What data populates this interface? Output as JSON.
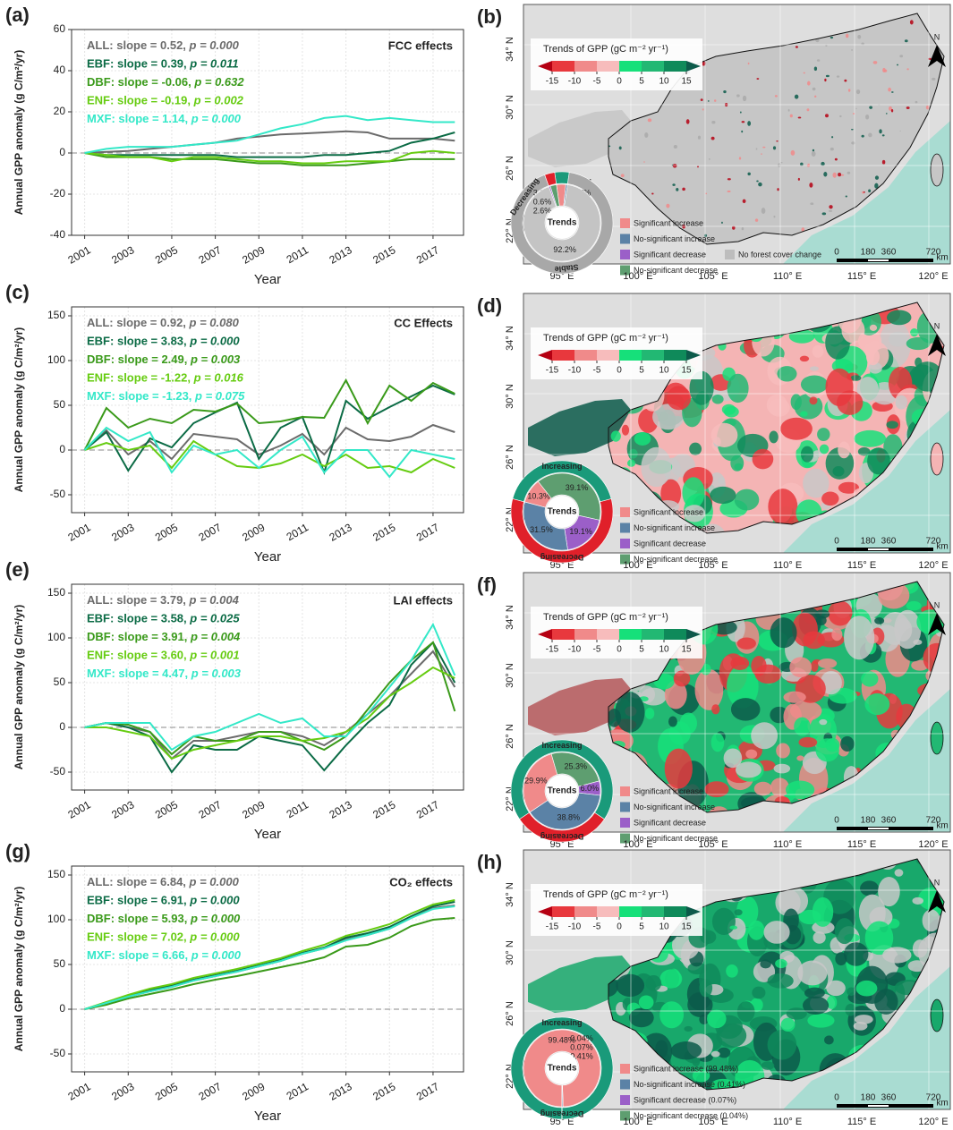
{
  "chart_data": [
    {
      "type": "line",
      "panel": "(a)",
      "title": "FCC effects",
      "xlabel": "Year",
      "ylabel": "Annual GPP anomaly (g C/m²/yr)",
      "x": [
        2001,
        2002,
        2003,
        2004,
        2005,
        2006,
        2007,
        2008,
        2009,
        2010,
        2011,
        2012,
        2013,
        2014,
        2015,
        2016,
        2017,
        2018
      ],
      "xlim": [
        2000.4,
        2018.4
      ],
      "xticks": [
        2001,
        2003,
        2005,
        2007,
        2009,
        2011,
        2013,
        2015,
        2017
      ],
      "ylim": [
        -40,
        60
      ],
      "yticks": [
        -40,
        -20,
        0,
        20,
        40,
        60
      ],
      "grid": true,
      "series": [
        {
          "name": "ALL:",
          "slope": "slope = 0.52,",
          "p": "p = 0.000",
          "color": "#6b6b6b",
          "values": [
            0,
            0.5,
            1,
            2,
            3,
            4,
            5,
            7,
            8,
            9,
            9.5,
            10,
            10.5,
            10,
            7,
            7,
            7,
            6
          ]
        },
        {
          "name": "EBF:",
          "slope": "slope = 0.39,",
          "p": "p = 0.011",
          "color": "#0b6b45",
          "values": [
            0,
            -1,
            -1,
            -1,
            -1,
            -1,
            -1,
            -2,
            -2,
            -2,
            -2,
            -1,
            -1,
            0,
            1,
            5,
            7,
            10
          ]
        },
        {
          "name": "DBF:",
          "slope": "slope = -0.06,",
          "p": "p = 0.632",
          "color": "#3a9a1a",
          "values": [
            0,
            -2,
            -2,
            -2,
            -3,
            -3,
            -3,
            -4,
            -5,
            -5,
            -6,
            -6,
            -6,
            -5,
            -4,
            -3,
            -3,
            -3
          ]
        },
        {
          "name": "ENF:",
          "slope": "slope = -0.19,",
          "p": "p = 0.002",
          "color": "#66cc11",
          "values": [
            0,
            -1,
            -2,
            -2,
            -4,
            -2,
            -2,
            -3,
            -4,
            -4,
            -5,
            -5,
            -4,
            -4,
            -4,
            0,
            1,
            0
          ]
        },
        {
          "name": "MXF:",
          "slope": "slope = 1.14,",
          "p": "p = 0.000",
          "color": "#33e8c8",
          "values": [
            0,
            2,
            3,
            3,
            3,
            4,
            5,
            6,
            9,
            12,
            14,
            17,
            18,
            16,
            17,
            16,
            15,
            15
          ]
        }
      ]
    },
    {
      "type": "line",
      "panel": "(c)",
      "title": "CC Effects",
      "xlabel": "Year",
      "ylabel": "Annual GPP anomaly (g C/m²/yr)",
      "x": [
        2001,
        2002,
        2003,
        2004,
        2005,
        2006,
        2007,
        2008,
        2009,
        2010,
        2011,
        2012,
        2013,
        2014,
        2015,
        2016,
        2017,
        2018
      ],
      "xlim": [
        2000.4,
        2018.4
      ],
      "xticks": [
        2001,
        2003,
        2005,
        2007,
        2009,
        2011,
        2013,
        2015,
        2017
      ],
      "ylim": [
        -70,
        160
      ],
      "yticks": [
        -50,
        0,
        50,
        100,
        150
      ],
      "grid": true,
      "series": [
        {
          "name": "ALL:",
          "slope": "slope = 0.92,",
          "p": "p = 0.080",
          "color": "#6b6b6b",
          "values": [
            0,
            22,
            -5,
            10,
            -10,
            18,
            15,
            12,
            -5,
            5,
            18,
            -5,
            25,
            12,
            10,
            15,
            28,
            20
          ]
        },
        {
          "name": "EBF:",
          "slope": "slope = 3.83,",
          "p": "p = 0.000",
          "color": "#0b6b45",
          "values": [
            0,
            20,
            -23,
            13,
            3,
            30,
            42,
            53,
            -10,
            25,
            37,
            -25,
            55,
            35,
            48,
            60,
            72,
            62
          ]
        },
        {
          "name": "DBF:",
          "slope": "slope = 2.49,",
          "p": "p = 0.003",
          "color": "#3a9a1a",
          "values": [
            0,
            47,
            25,
            35,
            30,
            45,
            43,
            52,
            30,
            32,
            37,
            36,
            78,
            30,
            72,
            55,
            75,
            63
          ]
        },
        {
          "name": "ENF:",
          "slope": "slope = -1.22,",
          "p": "p = 0.016",
          "color": "#66cc11",
          "values": [
            0,
            8,
            0,
            5,
            -20,
            10,
            -5,
            -18,
            -20,
            -15,
            -5,
            -18,
            -5,
            -20,
            -18,
            -25,
            -10,
            -20
          ]
        },
        {
          "name": "MXF:",
          "slope": "slope = -1.23,",
          "p": "p = 0.075",
          "color": "#33e8c8",
          "values": [
            0,
            25,
            10,
            20,
            -25,
            5,
            -5,
            0,
            -20,
            0,
            15,
            -25,
            0,
            0,
            -30,
            0,
            -5,
            -10
          ]
        }
      ]
    },
    {
      "type": "line",
      "panel": "(e)",
      "title": "LAI effects",
      "xlabel": "Year",
      "ylabel": "Annual GPP anomaly (g C/m²/yr)",
      "x": [
        2001,
        2002,
        2003,
        2004,
        2005,
        2006,
        2007,
        2008,
        2009,
        2010,
        2011,
        2012,
        2013,
        2014,
        2015,
        2016,
        2017,
        2018
      ],
      "xlim": [
        2000.4,
        2018.4
      ],
      "xticks": [
        2001,
        2003,
        2005,
        2007,
        2009,
        2011,
        2013,
        2015,
        2017
      ],
      "ylim": [
        -70,
        160
      ],
      "yticks": [
        -50,
        0,
        50,
        100,
        150
      ],
      "grid": true,
      "series": [
        {
          "name": "ALL:",
          "slope": "slope = 3.79,",
          "p": "p = 0.004",
          "color": "#6b6b6b",
          "values": [
            0,
            5,
            0,
            -5,
            -35,
            -15,
            -15,
            -10,
            -5,
            -5,
            -10,
            -20,
            -5,
            15,
            35,
            60,
            85,
            45
          ]
        },
        {
          "name": "EBF:",
          "slope": "slope = 3.58,",
          "p": "p = 0.025",
          "color": "#0b6b45",
          "values": [
            0,
            5,
            0,
            -10,
            -50,
            -20,
            -25,
            -25,
            -10,
            -15,
            -20,
            -48,
            -20,
            5,
            25,
            70,
            95,
            50
          ]
        },
        {
          "name": "DBF:",
          "slope": "slope = 3.91,",
          "p": "p = 0.004",
          "color": "#3a9a1a",
          "values": [
            0,
            5,
            3,
            -5,
            -30,
            -10,
            -15,
            -15,
            -5,
            -5,
            -15,
            -25,
            -10,
            20,
            50,
            75,
            95,
            18
          ]
        },
        {
          "name": "ENF:",
          "slope": "slope = 3.60,",
          "p": "p = 0.001",
          "color": "#66cc11",
          "values": [
            0,
            0,
            -5,
            -10,
            -35,
            -25,
            -20,
            -15,
            -10,
            -10,
            -15,
            -12,
            -5,
            10,
            35,
            50,
            67,
            55
          ]
        },
        {
          "name": "MXF:",
          "slope": "slope = 4.47,",
          "p": "p = 0.003",
          "color": "#33e8c8",
          "values": [
            0,
            5,
            5,
            5,
            -25,
            -10,
            -5,
            5,
            15,
            5,
            10,
            -10,
            -10,
            15,
            45,
            75,
            115,
            58
          ]
        }
      ]
    },
    {
      "type": "line",
      "panel": "(g)",
      "title": "CO₂ effects",
      "xlabel": "Year",
      "ylabel": "Annual GPP anomaly (g C/m²/yr)",
      "x": [
        2001,
        2002,
        2003,
        2004,
        2005,
        2006,
        2007,
        2008,
        2009,
        2010,
        2011,
        2012,
        2013,
        2014,
        2015,
        2016,
        2017,
        2018
      ],
      "xlim": [
        2000.4,
        2018.4
      ],
      "xticks": [
        2001,
        2003,
        2005,
        2007,
        2009,
        2011,
        2013,
        2015,
        2017
      ],
      "ylim": [
        -70,
        160
      ],
      "yticks": [
        -50,
        0,
        50,
        100,
        150
      ],
      "grid": true,
      "series": [
        {
          "name": "ALL:",
          "slope": "slope = 6.84,",
          "p": "p = 0.000",
          "color": "#6b6b6b",
          "values": [
            0,
            7,
            14,
            20,
            25,
            32,
            37,
            42,
            48,
            54,
            62,
            68,
            78,
            83,
            90,
            102,
            113,
            116
          ]
        },
        {
          "name": "EBF:",
          "slope": "slope = 6.91,",
          "p": "p = 0.000",
          "color": "#0b6b45",
          "values": [
            0,
            7,
            15,
            21,
            27,
            33,
            38,
            43,
            49,
            55,
            63,
            69,
            80,
            85,
            92,
            104,
            115,
            120
          ]
        },
        {
          "name": "DBF:",
          "slope": "slope = 5.93,",
          "p": "p = 0.000",
          "color": "#3a9a1a",
          "values": [
            0,
            5,
            12,
            17,
            22,
            28,
            33,
            37,
            42,
            47,
            52,
            58,
            70,
            72,
            80,
            93,
            100,
            102
          ]
        },
        {
          "name": "ENF:",
          "slope": "slope = 7.02,",
          "p": "p = 0.000",
          "color": "#66cc11",
          "values": [
            0,
            8,
            16,
            23,
            28,
            35,
            40,
            45,
            51,
            57,
            65,
            72,
            82,
            88,
            95,
            107,
            117,
            122
          ]
        },
        {
          "name": "MXF:",
          "slope": "slope = 6.66,",
          "p": "p = 0.000",
          "color": "#33e8c8",
          "values": [
            0,
            7,
            14,
            20,
            25,
            32,
            37,
            42,
            48,
            54,
            62,
            68,
            77,
            83,
            90,
            102,
            112,
            115
          ]
        }
      ]
    },
    {
      "type": "pie",
      "center_label": "Trends",
      "values": [
        3.9,
        0.7,
        92.2,
        0.6,
        2.6
      ],
      "value_labels": [
        "3.9%",
        "0.7%",
        "92.2%",
        "0.6%",
        "2.6%"
      ],
      "colors": [
        "#f08a8a",
        "#5b82a6",
        "#c4c4c4",
        "#9b5fc8",
        "#5e9e70"
      ],
      "outer": {
        "names": [
          "Increasing",
          "Stable",
          "Decreasing"
        ],
        "values": [
          4.6,
          92.2,
          3.2
        ],
        "colors": [
          "#1a9a7a",
          "#a8a8a8",
          "#e0202a"
        ]
      }
    },
    {
      "type": "pie",
      "center_label": "Trends",
      "values": [
        10.3,
        39.1,
        19.1,
        31.5
      ],
      "value_labels": [
        "10.3%",
        "39.1%",
        "19.1%",
        "31.5%"
      ],
      "colors": [
        "#f08a8a",
        "#5e9e70",
        "#9b5fc8",
        "#5b82a6"
      ],
      "outer": {
        "names": [
          "Increasing",
          "Decreasing"
        ],
        "values": [
          41.8,
          58.2
        ],
        "colors": [
          "#1a9a7a",
          "#e0202a"
        ]
      }
    },
    {
      "type": "pie",
      "center_label": "Trends",
      "values": [
        29.9,
        25.3,
        6.0,
        38.8
      ],
      "value_labels": [
        "29.9%",
        "25.3%",
        "6.0%",
        "38.8%"
      ],
      "colors": [
        "#f08a8a",
        "#5e9e70",
        "#9b5fc8",
        "#5b82a6"
      ],
      "outer": {
        "names": [
          "Increasing",
          "Decreasing"
        ],
        "values": [
          68.7,
          31.3
        ],
        "colors": [
          "#1a9a7a",
          "#e0202a"
        ]
      }
    },
    {
      "type": "pie",
      "center_label": "Trends",
      "values": [
        99.48,
        0.04,
        0.07,
        0.41
      ],
      "value_labels": [
        "99.48%",
        "0.04%",
        "0.07%",
        "0.41%"
      ],
      "colors": [
        "#f08a8a",
        "#5e9e70",
        "#9b5fc8",
        "#5b82a6"
      ],
      "outer": {
        "names": [
          "Increasing",
          "Decreasing"
        ],
        "values": [
          99.89,
          0.11
        ],
        "colors": [
          "#1a9a7a",
          "#1a9a7a"
        ]
      }
    }
  ],
  "map_axes": {
    "legend_title": "Trends of GPP (gC m⁻² yr⁻¹)",
    "colorbar_ticks": [
      -15,
      -10,
      -5,
      0,
      5,
      10,
      15
    ],
    "colorbar_colors": [
      "#b50012",
      "#e8383d",
      "#f08a8a",
      "#f7bcbc",
      "#16e07a",
      "#22b873",
      "#0f8a5a",
      "#0c5a4a"
    ],
    "lat_labels": [
      "34° N",
      "30° N",
      "26° N",
      "22° N"
    ],
    "lon_labels": [
      "95° E",
      "100° E",
      "105° E",
      "110° E",
      "115° E",
      "120° E"
    ],
    "scale_labels": [
      "0",
      "180",
      "360",
      "720"
    ],
    "scale_unit": "km",
    "north": "N"
  },
  "maps": [
    {
      "panel": "(b)",
      "legend_items": [
        {
          "label": "Significant increase",
          "color": "#f08a8a"
        },
        {
          "label": "No-significant increase",
          "color": "#5b82a6"
        },
        {
          "label": "Significant decrease",
          "color": "#9b5fc8"
        },
        {
          "label": "No-significant decrease",
          "color": "#5e9e70"
        },
        {
          "label": "No forest cover change",
          "color": "#bdbdbd"
        }
      ]
    },
    {
      "panel": "(d)",
      "legend_items": [
        {
          "label": "Significant increase",
          "color": "#f08a8a"
        },
        {
          "label": "No-significant increase",
          "color": "#5b82a6"
        },
        {
          "label": "Significant decrease",
          "color": "#9b5fc8"
        },
        {
          "label": "No-significant decrease",
          "color": "#5e9e70"
        }
      ]
    },
    {
      "panel": "(f)",
      "legend_items": [
        {
          "label": "Significant increase",
          "color": "#f08a8a"
        },
        {
          "label": "No-significant increase",
          "color": "#5b82a6"
        },
        {
          "label": "Significant decrease",
          "color": "#9b5fc8"
        },
        {
          "label": "No-significant decrease",
          "color": "#5e9e70"
        }
      ]
    },
    {
      "panel": "(h)",
      "legend_items": [
        {
          "label": "Significant increase (99.48%)",
          "color": "#f08a8a"
        },
        {
          "label": "No-significant increase (0.41%)",
          "color": "#5b82a6"
        },
        {
          "label": "Significant decrease (0.07%)",
          "color": "#9b5fc8"
        },
        {
          "label": "No-significant decrease (0.04%)",
          "color": "#5e9e70"
        }
      ]
    }
  ]
}
